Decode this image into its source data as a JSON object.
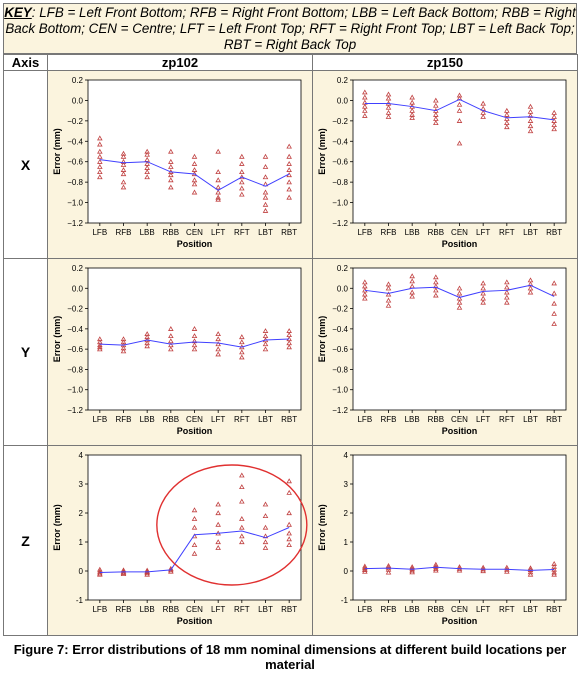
{
  "key": {
    "label": "KEY",
    "text": ":  LFB = Left Front Bottom; RFB = Right Front Bottom; LBB = Left Back Bottom; RBB = Right Back Bottom; CEN = Centre; LFT = Left Front Top; RFT = Right Front Top;   LBT = Left Back Top; RBT = Right Back Top"
  },
  "table": {
    "axis_header": "Axis",
    "col1": "zp102",
    "col2": "zp150",
    "rows": [
      "X",
      "Y",
      "Z"
    ]
  },
  "caption": "Figure 7: Error distributions of 18 mm nominal dimensions at different build locations per material",
  "colors": {
    "panel_bg": "#fbf4de",
    "plot_bg": "#ffffff",
    "mean_line": "#4040ff",
    "points": "#c04040",
    "circle": "#e03030"
  },
  "chart_data": [
    {
      "id": "zp102-X",
      "type": "line",
      "categories": [
        "LFB",
        "RFB",
        "LBB",
        "RBB",
        "CEN",
        "LFT",
        "RFT",
        "LBT",
        "RBT"
      ],
      "xlabel": "Position",
      "ylabel": "Error (mm)",
      "ylim": [
        -1.2,
        0.2
      ],
      "yticks": [
        -1.2,
        -1.0,
        -0.8,
        -0.6,
        -0.4,
        -0.2,
        0.0,
        0.2
      ],
      "series": [
        {
          "values": [
            -0.58,
            -0.61,
            -0.6,
            -0.7,
            -0.72,
            -0.88,
            -0.75,
            -0.84,
            -0.72
          ]
        }
      ],
      "scatter": [
        [
          -0.37,
          -0.43,
          -0.5,
          -0.55,
          -0.6,
          -0.65,
          -0.7,
          -0.75
        ],
        [
          -0.52,
          -0.55,
          -0.6,
          -0.63,
          -0.68,
          -0.72,
          -0.8,
          -0.85
        ],
        [
          -0.5,
          -0.53,
          -0.58,
          -0.62,
          -0.66,
          -0.7,
          -0.75
        ],
        [
          -0.5,
          -0.6,
          -0.65,
          -0.7,
          -0.73,
          -0.78,
          -0.85
        ],
        [
          -0.55,
          -0.62,
          -0.68,
          -0.72,
          -0.78,
          -0.82,
          -0.9
        ],
        [
          -0.5,
          -0.7,
          -0.78,
          -0.85,
          -0.9,
          -0.95,
          -0.97
        ],
        [
          -0.55,
          -0.62,
          -0.7,
          -0.75,
          -0.8,
          -0.86,
          -0.92
        ],
        [
          -0.55,
          -0.65,
          -0.75,
          -0.82,
          -0.9,
          -0.95,
          -1.02,
          -1.08
        ],
        [
          -0.45,
          -0.55,
          -0.62,
          -0.68,
          -0.73,
          -0.8,
          -0.87,
          -0.95
        ]
      ]
    },
    {
      "id": "zp150-X",
      "type": "line",
      "categories": [
        "LFB",
        "RFB",
        "LBB",
        "RBB",
        "CEN",
        "LFT",
        "RFT",
        "LBT",
        "RBT"
      ],
      "xlabel": "Position",
      "ylabel": "Error (mm)",
      "ylim": [
        -1.2,
        0.2
      ],
      "yticks": [
        -1.2,
        -1.0,
        -0.8,
        -0.6,
        -0.4,
        -0.2,
        0.0,
        0.2
      ],
      "series": [
        {
          "values": [
            -0.03,
            -0.03,
            -0.06,
            -0.1,
            0.01,
            -0.1,
            -0.17,
            -0.16,
            -0.19
          ]
        }
      ],
      "scatter": [
        [
          0.08,
          0.03,
          -0.02,
          -0.06,
          -0.1,
          -0.15
        ],
        [
          0.06,
          0.02,
          -0.03,
          -0.07,
          -0.12,
          -0.16
        ],
        [
          0.03,
          -0.02,
          -0.06,
          -0.1,
          -0.14,
          -0.17
        ],
        [
          0.0,
          -0.05,
          -0.1,
          -0.14,
          -0.18,
          -0.22
        ],
        [
          0.05,
          0.02,
          -0.04,
          -0.1,
          -0.2,
          -0.42
        ],
        [
          -0.03,
          -0.08,
          -0.12,
          -0.16
        ],
        [
          -0.1,
          -0.14,
          -0.18,
          -0.22,
          -0.26
        ],
        [
          -0.06,
          -0.11,
          -0.15,
          -0.2,
          -0.25,
          -0.3
        ],
        [
          -0.12,
          -0.16,
          -0.2,
          -0.24,
          -0.28
        ]
      ]
    },
    {
      "id": "zp102-Y",
      "type": "line",
      "categories": [
        "LFB",
        "RFB",
        "LBB",
        "RBB",
        "CEN",
        "LFT",
        "RFT",
        "LBT",
        "RBT"
      ],
      "xlabel": "Position",
      "ylabel": "Error (mm)",
      "ylim": [
        -1.2,
        0.2
      ],
      "yticks": [
        -1.2,
        -1.0,
        -0.8,
        -0.6,
        -0.4,
        -0.2,
        0.0,
        0.2
      ],
      "series": [
        {
          "values": [
            -0.55,
            -0.56,
            -0.51,
            -0.55,
            -0.53,
            -0.54,
            -0.58,
            -0.51,
            -0.5
          ]
        }
      ],
      "scatter": [
        [
          -0.5,
          -0.53,
          -0.56,
          -0.58,
          -0.6
        ],
        [
          -0.5,
          -0.53,
          -0.56,
          -0.59,
          -0.62
        ],
        [
          -0.45,
          -0.48,
          -0.51,
          -0.54,
          -0.57
        ],
        [
          -0.4,
          -0.47,
          -0.52,
          -0.56,
          -0.6
        ],
        [
          -0.4,
          -0.47,
          -0.52,
          -0.56,
          -0.6
        ],
        [
          -0.45,
          -0.5,
          -0.55,
          -0.6,
          -0.65
        ],
        [
          -0.48,
          -0.53,
          -0.58,
          -0.63,
          -0.68
        ],
        [
          -0.42,
          -0.47,
          -0.51,
          -0.55,
          -0.6
        ],
        [
          -0.42,
          -0.46,
          -0.5,
          -0.54,
          -0.58
        ]
      ]
    },
    {
      "id": "zp150-Y",
      "type": "line",
      "categories": [
        "LFB",
        "RFB",
        "LBB",
        "RBB",
        "CEN",
        "LFT",
        "RFT",
        "LBT",
        "RBT"
      ],
      "xlabel": "Position",
      "ylabel": "Error (mm)",
      "ylim": [
        -1.2,
        0.2
      ],
      "yticks": [
        -1.2,
        -1.0,
        -0.8,
        -0.6,
        -0.4,
        -0.2,
        0.0,
        0.2
      ],
      "series": [
        {
          "values": [
            -0.02,
            -0.05,
            0.0,
            0.01,
            -0.09,
            -0.03,
            -0.02,
            0.03,
            -0.08
          ]
        }
      ],
      "scatter": [
        [
          0.06,
          0.02,
          -0.02,
          -0.06,
          -0.1
        ],
        [
          0.04,
          0.0,
          -0.06,
          -0.12,
          -0.17
        ],
        [
          0.12,
          0.07,
          0.02,
          -0.04,
          -0.08
        ],
        [
          0.11,
          0.06,
          0.02,
          -0.02,
          -0.07
        ],
        [
          0.0,
          -0.05,
          -0.1,
          -0.14,
          -0.19
        ],
        [
          0.05,
          0.0,
          -0.05,
          -0.1,
          -0.14
        ],
        [
          0.06,
          0.01,
          -0.04,
          -0.09,
          -0.14
        ],
        [
          0.08,
          0.04,
          0.0,
          -0.04
        ],
        [
          0.05,
          -0.05,
          -0.15,
          -0.25,
          -0.35
        ]
      ]
    },
    {
      "id": "zp102-Z",
      "type": "line",
      "categories": [
        "LFB",
        "RFB",
        "LBB",
        "RBB",
        "CEN",
        "LFT",
        "RFT",
        "LBT",
        "RBT"
      ],
      "xlabel": "Position",
      "ylabel": "Error (mm)",
      "ylim": [
        -1,
        4
      ],
      "yticks": [
        -1,
        0,
        1,
        2,
        3,
        4
      ],
      "series": [
        {
          "values": [
            -0.05,
            -0.03,
            -0.03,
            0.04,
            1.25,
            1.3,
            1.38,
            1.15,
            1.5
          ]
        }
      ],
      "scatter": [
        [
          0.05,
          -0.02,
          -0.08,
          -0.12
        ],
        [
          0.03,
          -0.02,
          -0.06,
          -0.1
        ],
        [
          0.02,
          -0.03,
          -0.07,
          -0.12
        ],
        [
          0.08,
          0.03,
          -0.02
        ],
        [
          2.1,
          1.8,
          1.5,
          1.2,
          0.9,
          0.6
        ],
        [
          2.3,
          2.0,
          1.6,
          1.3,
          1.0,
          0.8
        ],
        [
          3.3,
          2.9,
          2.4,
          1.8,
          1.5,
          1.2,
          1.0
        ],
        [
          2.3,
          1.9,
          1.5,
          1.2,
          1.0,
          0.8
        ],
        [
          3.1,
          2.7,
          2.0,
          1.6,
          1.3,
          1.1,
          0.9
        ]
      ]
    },
    {
      "id": "zp150-Z",
      "type": "line",
      "categories": [
        "LFB",
        "RFB",
        "LBB",
        "RBB",
        "CEN",
        "LFT",
        "RFT",
        "LBT",
        "RBT"
      ],
      "xlabel": "Position",
      "ylabel": "Error (mm)",
      "ylim": [
        -1,
        4
      ],
      "yticks": [
        -1,
        0,
        1,
        2,
        3,
        4
      ],
      "series": [
        {
          "values": [
            0.08,
            0.1,
            0.06,
            0.13,
            0.08,
            0.06,
            0.06,
            0.02,
            0.05
          ]
        }
      ],
      "scatter": [
        [
          0.16,
          0.1,
          0.04,
          -0.02
        ],
        [
          0.18,
          0.12,
          0.05,
          -0.05
        ],
        [
          0.14,
          0.08,
          0.02,
          -0.04
        ],
        [
          0.22,
          0.15,
          0.08,
          0.02
        ],
        [
          0.14,
          0.08,
          0.02
        ],
        [
          0.12,
          0.06,
          0.0
        ],
        [
          0.12,
          0.05,
          -0.02
        ],
        [
          0.1,
          0.04,
          -0.04,
          -0.12
        ],
        [
          0.25,
          0.15,
          0.05,
          -0.05,
          -0.12
        ]
      ]
    }
  ]
}
